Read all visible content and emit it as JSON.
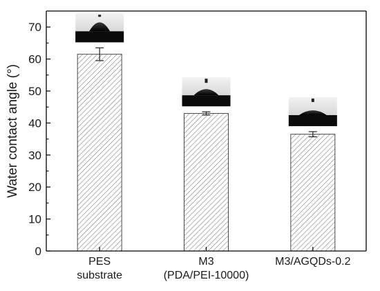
{
  "chart_data": {
    "type": "bar",
    "categories": [
      [
        "PES",
        "substrate"
      ],
      [
        "M3",
        "(PDA/PEI-10000)"
      ],
      [
        "M3/AGQDs-0.2"
      ]
    ],
    "values": [
      61.5,
      43.0,
      36.5
    ],
    "errors": [
      2.0,
      0.5,
      0.8
    ],
    "ylabel": "Water contact angle (°)",
    "ylim": [
      0,
      75
    ],
    "yticks": [
      "0",
      "10",
      "20",
      "30",
      "40",
      "50",
      "60",
      "70"
    ],
    "bar_fill": "hatched",
    "grid": false,
    "insets": [
      "droplet photo",
      "droplet photo",
      "droplet photo"
    ]
  }
}
